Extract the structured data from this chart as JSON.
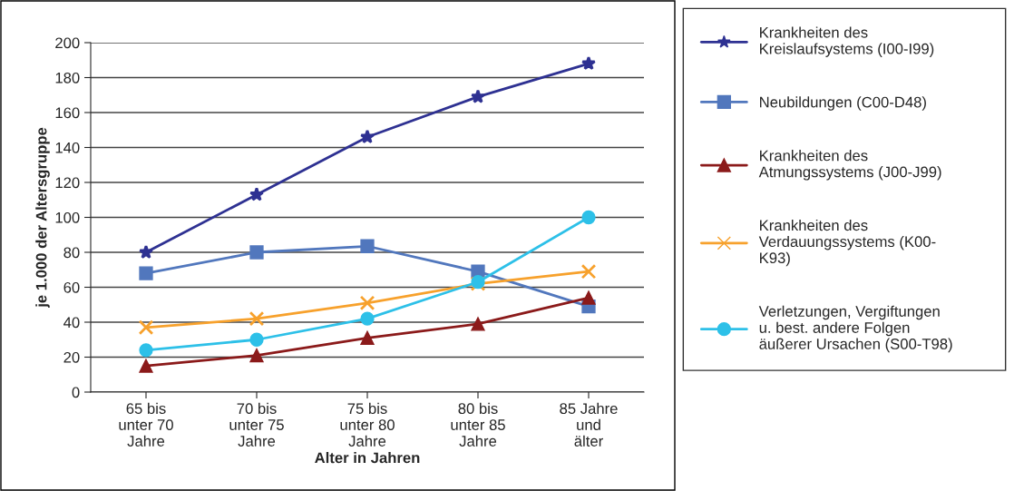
{
  "chart_data": {
    "type": "line",
    "xlabel": "Alter in Jahren",
    "ylabel": "je 1.000 der Altersgruppe",
    "categories": [
      "65 bis\nunter 70\nJahre",
      "70 bis\nunter 75\nJahre",
      "75 bis\nunter 80\nJahre",
      "80 bis\nunter 85\nJahre",
      "85 Jahre\nund\nälter"
    ],
    "series": [
      {
        "name": "Krankheiten des\nKreislaufsystems (I00-I99)",
        "color": "#2e3192",
        "marker": "star",
        "values": [
          80,
          113,
          146,
          169,
          188
        ]
      },
      {
        "name": "Neubildungen (C00-D48)",
        "color": "#5177bd",
        "marker": "square",
        "values": [
          68,
          80,
          83.5,
          69,
          49
        ]
      },
      {
        "name": "Krankheiten des\nAtmungssystems (J00-J99)",
        "color": "#8b1a1a",
        "marker": "triangle",
        "values": [
          15,
          21,
          31,
          39,
          54
        ]
      },
      {
        "name": "Krankheiten des\nVerdauungssystems (K00-\nK93)",
        "color": "#f7a12c",
        "marker": "cross",
        "values": [
          37,
          42,
          51,
          62,
          69
        ]
      },
      {
        "name": "Verletzungen, Vergiftungen\nu. best. andere Folgen\näußerer Ursachen (S00-T98)",
        "color": "#2dc0e8",
        "marker": "circle",
        "values": [
          24,
          30,
          42,
          63,
          100
        ]
      }
    ],
    "ylim": [
      0,
      200
    ],
    "yticks": [
      0,
      20,
      40,
      60,
      80,
      100,
      120,
      140,
      160,
      180,
      200
    ],
    "grid": "y",
    "legend": "right"
  }
}
